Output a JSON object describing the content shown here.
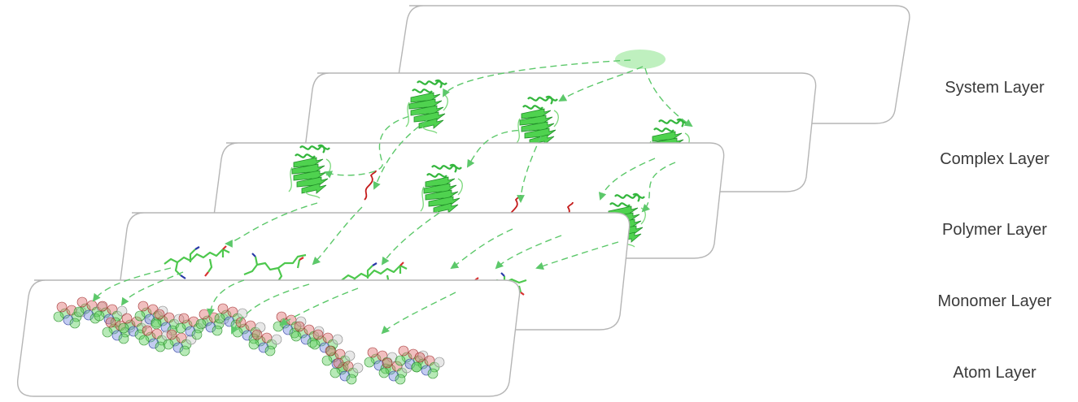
{
  "layers": [
    {
      "label": "System Layer"
    },
    {
      "label": "Complex Layer"
    },
    {
      "label": "Polymer Layer"
    },
    {
      "label": "Monomer Layer"
    },
    {
      "label": "Atom Layer"
    }
  ],
  "colors": {
    "arrow": "#5cc86a",
    "protein": "#3fc63f",
    "peptide": "#c41a1a",
    "system_node": "#bff0bf",
    "plate_border": "#b5b5b5",
    "label_text": "#3a3a3a"
  }
}
